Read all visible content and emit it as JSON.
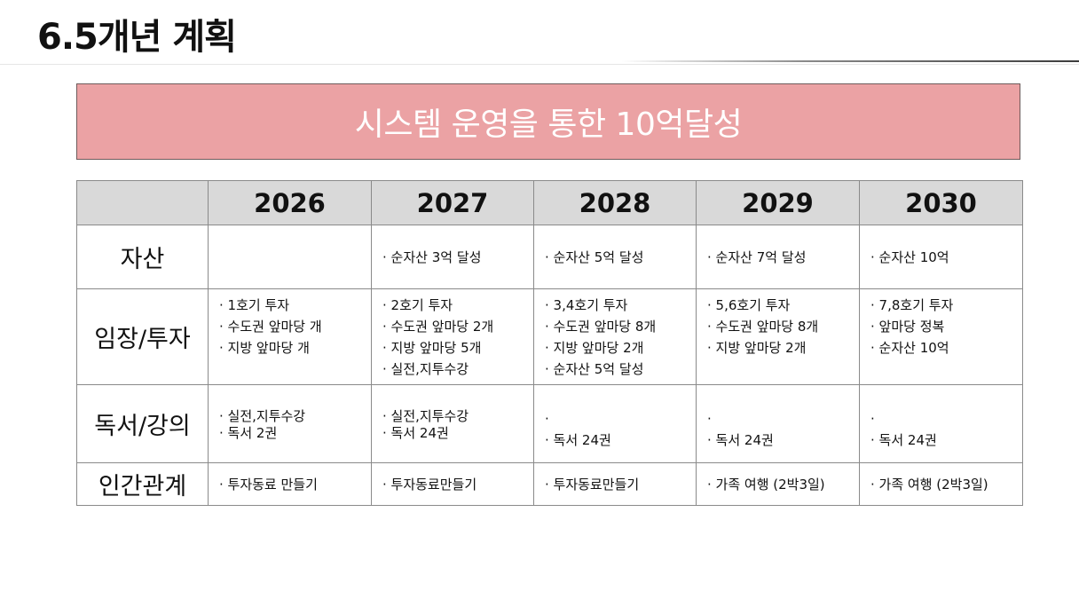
{
  "slide": {
    "title": "6.5개년 계획"
  },
  "banner": {
    "text": "시스템 운영을 통한 10억달성"
  },
  "table": {
    "columns": [
      "",
      "2026",
      "2027",
      "2028",
      "2029",
      "2030"
    ],
    "rows": [
      {
        "label": "자산",
        "cells": [
          [],
          [
            "· 순자산 3억 달성"
          ],
          [
            "· 순자산 5억 달성"
          ],
          [
            "· 순자산 7억 달성"
          ],
          [
            "· 순자산 10억"
          ]
        ]
      },
      {
        "label": "임장/투자",
        "cells": [
          [
            "· 1호기 투자",
            "· 수도권 앞마당 개",
            "· 지방 앞마당 개"
          ],
          [
            "· 2호기 투자",
            "· 수도권 앞마당 2개",
            "· 지방 앞마당 5개",
            "· 실전,지투수강"
          ],
          [
            "· 3,4호기 투자",
            "· 수도권 앞마당 8개",
            "· 지방 앞마당 2개",
            "· 순자산 5억 달성"
          ],
          [
            "· 5,6호기 투자",
            "· 수도권 앞마당 8개",
            "· 지방 앞마당 2개"
          ],
          [
            "· 7,8호기 투자",
            "· 앞마당 정복",
            "· 순자산 10억"
          ]
        ]
      },
      {
        "label": "독서/강의",
        "cells": [
          [
            "· 실전,지투수강",
            "· 독서 2권"
          ],
          [
            "· 실전,지투수강",
            "· 독서 24권"
          ],
          [
            "·",
            "· 독서 24권"
          ],
          [
            "·",
            "· 독서 24권"
          ],
          [
            "·",
            "· 독서 24권"
          ]
        ]
      },
      {
        "label": "인간관계",
        "cells": [
          [
            "· 투자동료 만들기"
          ],
          [
            "· 투자동료만들기"
          ],
          [
            "· 투자동료만들기"
          ],
          [
            "· 가족 여행 (2박3일)"
          ],
          [
            "· 가족 여행 (2박3일)"
          ]
        ]
      }
    ]
  },
  "colors": {
    "banner_bg": "#eba2a4",
    "banner_text": "#ffffff",
    "header_bg": "#d9d9d9",
    "grid": "#8a8a8a"
  }
}
